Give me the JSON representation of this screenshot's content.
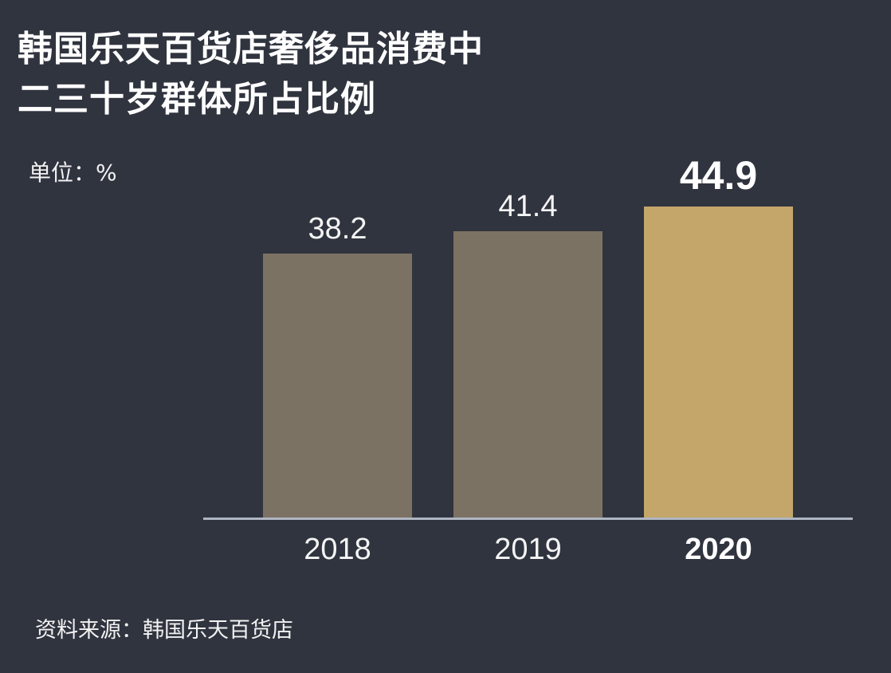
{
  "title_lines": [
    "韩国乐天百货店奢侈品消费中",
    "二三十岁群体所占比例"
  ],
  "unit_label": "单位：%",
  "source_label": "资料来源：韩国乐天百货店",
  "colors": {
    "background": "#30343f",
    "bar_default": "#7c7263",
    "bar_highlight": "#c4a66a",
    "axis_line": "#aeb6c2",
    "text": "#ffffff"
  },
  "chart_data": {
    "type": "bar",
    "title": "韩国乐天百货店奢侈品消费中二三十岁群体所占比例",
    "categories": [
      "2018",
      "2019",
      "2020"
    ],
    "values": [
      38.2,
      41.4,
      44.9
    ],
    "value_labels": [
      "38.2",
      "41.4",
      "44.9"
    ],
    "highlight_index": 2,
    "xlabel": "",
    "ylabel": "单位：%",
    "ylim": [
      0,
      45
    ],
    "grid": false,
    "legend": null,
    "source": "资料来源：韩国乐天百货店"
  }
}
